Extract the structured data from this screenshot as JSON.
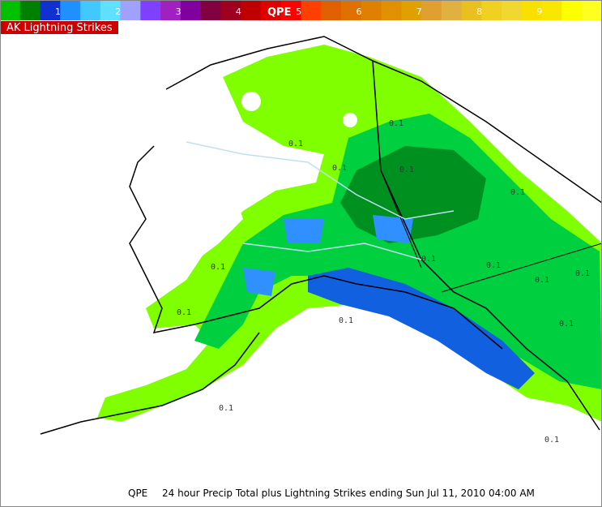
{
  "colorbar": {
    "title": "QPE",
    "labels": [
      "1",
      "2",
      "3",
      "4",
      "5",
      "6",
      "7",
      "8",
      "9"
    ],
    "colors": [
      "#00c000",
      "#008000",
      "#1030d0",
      "#1e90ff",
      "#40c8ff",
      "#60e0ff",
      "#a0a0ff",
      "#8040ff",
      "#a020c0",
      "#8000a0",
      "#800040",
      "#a00020",
      "#c00000",
      "#e00000",
      "#ff0000",
      "#ff4000",
      "#e06000",
      "#e07000",
      "#e08000",
      "#e09000",
      "#e0a000",
      "#e0a030",
      "#e0b040",
      "#e8c020",
      "#f0d020",
      "#f0d830",
      "#f8e000",
      "#f8e800",
      "#ffff00",
      "#ffff20"
    ]
  },
  "legend": {
    "lightning": "AK Lightning Strikes"
  },
  "caption": {
    "product": "QPE",
    "text": "24 hour Precip Total plus Lightning Strikes ending Sun Jul 11, 2010 04:00 AM"
  },
  "map": {
    "contour_labels": [
      "0.1",
      "0.1",
      "0.1",
      "0.1",
      "0.1",
      "0.1",
      "0.1",
      "0.1",
      "0.1",
      "0.1",
      "0.1",
      "0.1",
      "0.1",
      "0.1",
      "0.1"
    ]
  }
}
